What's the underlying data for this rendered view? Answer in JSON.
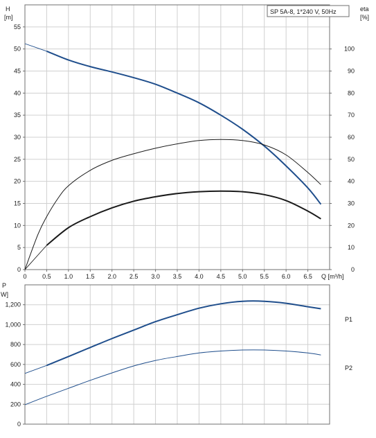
{
  "chart_data": [
    {
      "type": "line",
      "title": "SP 5A-8, 1*240 V, 50Hz",
      "xlabel": "Q [m³/h]",
      "ylabel_left_symbol": "H",
      "ylabel_left_unit": "[m]",
      "ylabel_right_symbol": "eta",
      "ylabel_right_unit": "[%]",
      "xlim": [
        0,
        7.0
      ],
      "ylim_left": [
        0,
        60
      ],
      "ylim_right": [
        0,
        120
      ],
      "grid": true,
      "x_ticks": [
        "0",
        "0.5",
        "1.0",
        "1.5",
        "2.0",
        "2.5",
        "3.0",
        "3.5",
        "4.0",
        "4.5",
        "5.0",
        "5.5",
        "6.0",
        "6.5"
      ],
      "y_ticks_left": [
        "0",
        "5",
        "10",
        "15",
        "20",
        "25",
        "30",
        "35",
        "40",
        "45",
        "50",
        "55"
      ],
      "y_ticks_right": [
        "0",
        "10",
        "20",
        "30",
        "40",
        "50",
        "60",
        "70",
        "80",
        "90",
        "100"
      ],
      "series": [
        {
          "color": "#1f4e8c",
          "axis": "left",
          "width": 2,
          "x": [
            0,
            0.5,
            1.0,
            1.5,
            2.0,
            2.5,
            3.0,
            3.5,
            4.0,
            4.5,
            5.0,
            5.5,
            6.0,
            6.5,
            6.8
          ],
          "y": [
            51.2,
            49.5,
            47.5,
            46.0,
            44.8,
            43.5,
            42.0,
            40.0,
            37.8,
            35.0,
            31.8,
            28.0,
            23.5,
            18.5,
            14.8
          ],
          "dashed_until": 0.5
        },
        {
          "color": "#1a1a1a",
          "axis": "right",
          "width": 1,
          "x": [
            0,
            0.3,
            0.5,
            0.75,
            1.0,
            1.5,
            2.0,
            2.5,
            3.0,
            3.5,
            4.0,
            4.5,
            5.0,
            5.5,
            6.0,
            6.5,
            6.8
          ],
          "y": [
            0,
            16,
            24,
            32,
            38,
            45,
            49.5,
            52.5,
            55,
            57,
            58.5,
            59,
            58.5,
            56.5,
            52,
            44,
            38.5
          ]
        },
        {
          "color": "#1a1a1a",
          "axis": "right",
          "width": 2,
          "x": [
            0,
            0.5,
            1.0,
            1.5,
            2.0,
            2.5,
            3.0,
            3.5,
            4.0,
            4.5,
            5.0,
            5.5,
            6.0,
            6.5,
            6.8
          ],
          "y": [
            0,
            11,
            19,
            24,
            28,
            31,
            33,
            34.5,
            35.3,
            35.6,
            35.3,
            34,
            31.3,
            26.5,
            23
          ],
          "dashed_until": 0.5
        }
      ]
    },
    {
      "type": "line",
      "ylabel_symbol": "P",
      "ylabel_unit": "W]",
      "xlim": [
        0,
        7.0
      ],
      "ylim": [
        0,
        1400
      ],
      "grid": true,
      "y_ticks": [
        "0",
        "200",
        "400",
        "600",
        "800",
        "1,000",
        "1,200"
      ],
      "series": [
        {
          "name": "P1",
          "color": "#1f4e8c",
          "width": 2,
          "x": [
            0,
            0.5,
            1.0,
            1.5,
            2.0,
            2.5,
            3.0,
            3.5,
            4.0,
            4.5,
            5.0,
            5.5,
            6.0,
            6.5,
            6.8
          ],
          "y": [
            510,
            590,
            680,
            770,
            860,
            945,
            1030,
            1100,
            1165,
            1210,
            1235,
            1235,
            1215,
            1180,
            1160
          ],
          "dashed_until": 0.5
        },
        {
          "name": "P2",
          "color": "#1f4e8c",
          "width": 1,
          "x": [
            0,
            0.5,
            1.0,
            1.5,
            2.0,
            2.5,
            3.0,
            3.5,
            4.0,
            4.5,
            5.0,
            5.5,
            6.0,
            6.5,
            6.8
          ],
          "y": [
            195,
            280,
            360,
            440,
            515,
            585,
            640,
            680,
            715,
            735,
            745,
            745,
            735,
            715,
            695
          ]
        }
      ]
    }
  ]
}
